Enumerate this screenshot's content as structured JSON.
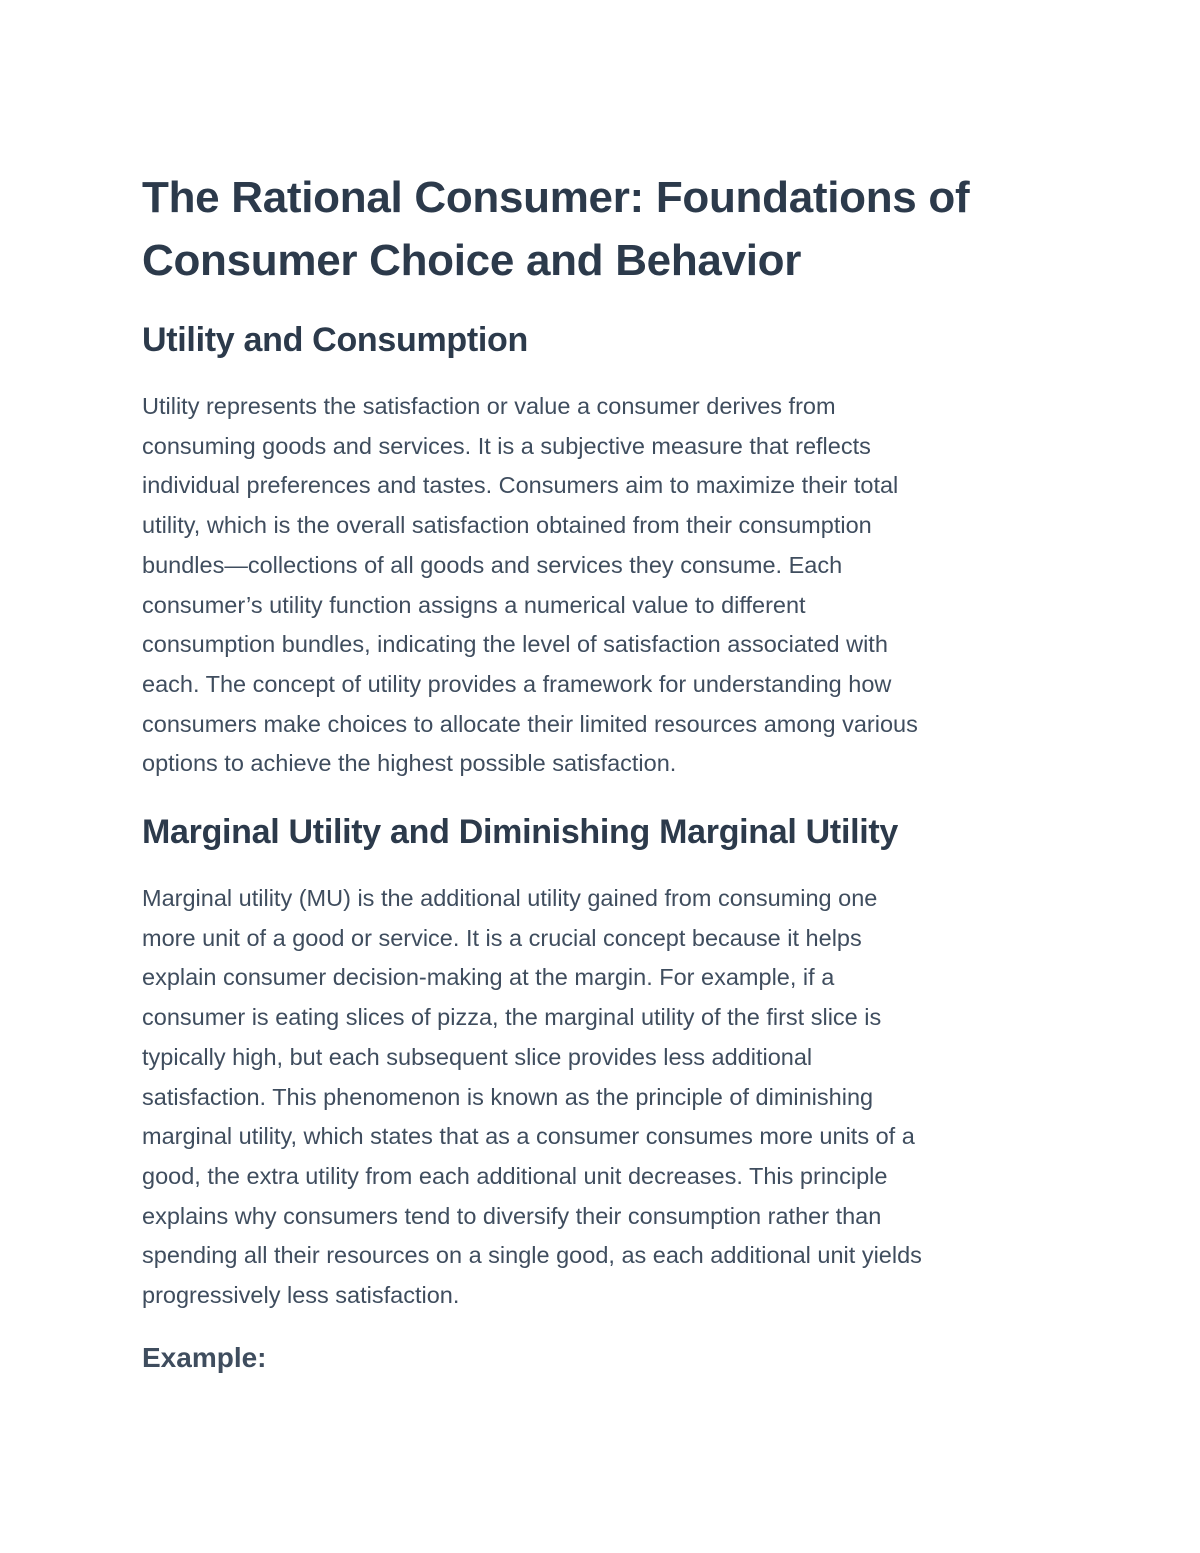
{
  "title_lines": [
    "The Rational Consumer: Foundations of",
    "Consumer Choice and Behavior"
  ],
  "sections": [
    {
      "heading": "Utility and Consumption",
      "lines": [
        "Utility represents the satisfaction or value a consumer derives from",
        "consuming goods and services. It is a subjective measure that reflects",
        "individual preferences and tastes. Consumers aim to maximize their total",
        "utility, which is the overall satisfaction obtained from their consumption",
        "bundles—collections of all goods and services they consume. Each",
        "consumer’s utility function assigns a numerical value to different",
        "consumption bundles, indicating the level of satisfaction associated with",
        "each. The concept of utility provides a framework for understanding how",
        "consumers make choices to allocate their limited resources among various",
        "options to achieve the highest possible satisfaction."
      ]
    },
    {
      "heading": "Marginal Utility and Diminishing Marginal Utility",
      "lines": [
        "Marginal utility (MU) is the additional utility gained from consuming one",
        "more unit of a good or service. It is a crucial concept because it helps",
        "explain consumer decision-making at the margin. For example, if a",
        "consumer is eating slices of pizza, the marginal utility of the first slice is",
        "typically high, but each subsequent slice provides less additional",
        "satisfaction. This phenomenon is known as the principle of diminishing",
        "marginal utility, which states that as a consumer consumes more units of a",
        "good, the extra utility from each additional unit decreases. This principle",
        "explains why consumers tend to diversify their consumption rather than",
        "spending all their resources on a single good, as each additional unit yields",
        "progressively less satisfaction."
      ]
    }
  ],
  "example_heading": "Example:"
}
